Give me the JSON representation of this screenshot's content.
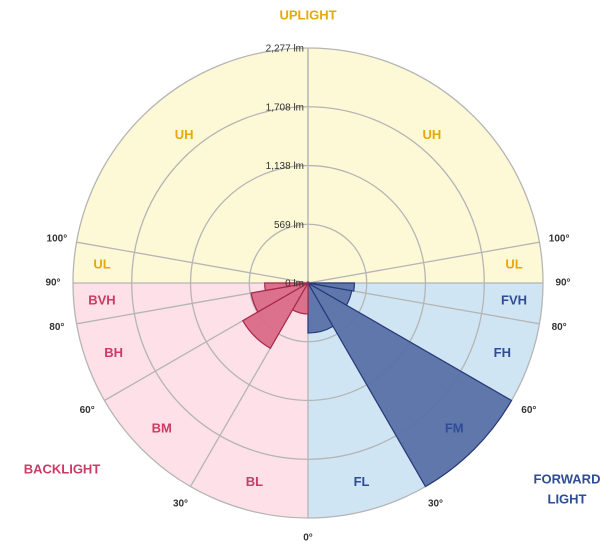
{
  "chart_data": {
    "type": "polar",
    "titles": {
      "uplight": "UPLIGHT",
      "backlight": "BACKLIGHT",
      "forward": [
        "FORWARD",
        "LIGHT"
      ]
    },
    "rlim": [
      0,
      2277
    ],
    "rticks": [
      {
        "value": 0,
        "label": "0 lm"
      },
      {
        "value": 569,
        "label": "569 lm"
      },
      {
        "value": 1138,
        "label": "1,138 lm"
      },
      {
        "value": 1708,
        "label": "1,708 lm"
      },
      {
        "value": 2277,
        "label": "2,277 lm"
      }
    ],
    "theta_ticks": [
      {
        "value": 0,
        "label": "0°"
      },
      {
        "value": 30,
        "label": "30°"
      },
      {
        "value": 60,
        "label": "60°"
      },
      {
        "value": 80,
        "label": "80°"
      },
      {
        "value": 90,
        "label": "90°"
      },
      {
        "value": 100,
        "label": "100°"
      }
    ],
    "sides": {
      "forward": {
        "zones": [
          {
            "label": "FL",
            "start": 0,
            "end": 30,
            "value": 485
          },
          {
            "label": "FM",
            "start": 30,
            "end": 60,
            "value": 2277
          },
          {
            "label": "FH",
            "start": 60,
            "end": 80,
            "value": 430
          },
          {
            "label": "FVH",
            "start": 80,
            "end": 90,
            "value": 450
          },
          {
            "label": "UL",
            "start": 90,
            "end": 100,
            "value": 0
          },
          {
            "label": "UH",
            "start": 100,
            "end": 180,
            "value": 0
          }
        ]
      },
      "backlight": {
        "zones": [
          {
            "label": "BL",
            "start": 0,
            "end": 30,
            "value": 300
          },
          {
            "label": "BM",
            "start": 30,
            "end": 60,
            "value": 730
          },
          {
            "label": "BH",
            "start": 60,
            "end": 80,
            "value": 560
          },
          {
            "label": "BVH",
            "start": 80,
            "end": 90,
            "value": 420
          },
          {
            "label": "UL",
            "start": 90,
            "end": 100,
            "value": 0
          },
          {
            "label": "UH",
            "start": 100,
            "end": 180,
            "value": 0
          }
        ]
      }
    },
    "colors": {
      "forward_bg": "#cfe5f3",
      "backlight_bg": "#fde0e8",
      "uplight_bg": "#fdf9d6",
      "forward_mark": "#5a71a8",
      "forward_edge": "#26397a",
      "backlight_mark": "#da6a88",
      "backlight_edge": "#a8284c",
      "forward_text": "#2f4d96",
      "backlight_text": "#cc3b64",
      "uplight_text": "#e8a80a"
    }
  }
}
